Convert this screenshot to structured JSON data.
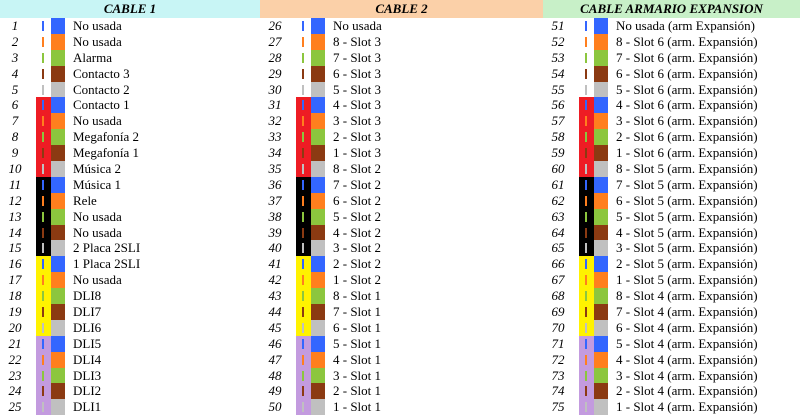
{
  "palette": {
    "white": "#ffffff",
    "red": "#ee1c24",
    "black": "#000000",
    "yellow": "#fff200",
    "violet": "#c39bdf",
    "blue": "#3366ff",
    "orange": "#ff7f1e",
    "green": "#8cc63e",
    "brown": "#8b3a12",
    "grey": "#c0c0c0"
  },
  "pair_order": [
    "blue",
    "orange",
    "green",
    "brown",
    "grey"
  ],
  "group_order": [
    "white",
    "red",
    "black",
    "yellow",
    "violet"
  ],
  "tables": [
    {
      "title": "CABLE 1",
      "header_color": "#c8f5f5",
      "rows": [
        {
          "num": "1",
          "label": "No usada"
        },
        {
          "num": "2",
          "label": "No usada"
        },
        {
          "num": "3",
          "label": "Alarma"
        },
        {
          "num": "4",
          "label": "Contacto 3"
        },
        {
          "num": "5",
          "label": "Contacto 2"
        },
        {
          "num": "6",
          "label": "Contacto 1"
        },
        {
          "num": "7",
          "label": "No usada"
        },
        {
          "num": "8",
          "label": "Megafonía 2"
        },
        {
          "num": "9",
          "label": "Megafonía 1"
        },
        {
          "num": "10",
          "label": "Música 2"
        },
        {
          "num": "11",
          "label": "Música 1"
        },
        {
          "num": "12",
          "label": "Rele"
        },
        {
          "num": "13",
          "label": "No usada"
        },
        {
          "num": "14",
          "label": "No usada"
        },
        {
          "num": "15",
          "label": "2 Placa 2SLI"
        },
        {
          "num": "16",
          "label": "1 Placa 2SLI"
        },
        {
          "num": "17",
          "label": "No usada"
        },
        {
          "num": "18",
          "label": "DLI8"
        },
        {
          "num": "19",
          "label": "DLI7"
        },
        {
          "num": "20",
          "label": "DLI6"
        },
        {
          "num": "21",
          "label": "DLI5"
        },
        {
          "num": "22",
          "label": "DLI4"
        },
        {
          "num": "23",
          "label": "DLI3"
        },
        {
          "num": "24",
          "label": "DLI2"
        },
        {
          "num": "25",
          "label": "DLI1"
        }
      ]
    },
    {
      "title": "CABLE 2",
      "header_color": "#fbd0a8",
      "rows": [
        {
          "num": "26",
          "label": "No usada"
        },
        {
          "num": "27",
          "label": "8 - Slot 3"
        },
        {
          "num": "28",
          "label": "7 - Slot 3"
        },
        {
          "num": "29",
          "label": "6 - Slot 3"
        },
        {
          "num": "30",
          "label": "5 - Slot 3"
        },
        {
          "num": "31",
          "label": "4 - Slot 3"
        },
        {
          "num": "32",
          "label": "3 - Slot 3"
        },
        {
          "num": "33",
          "label": "2 - Slot 3"
        },
        {
          "num": "34",
          "label": "1 - Slot 3"
        },
        {
          "num": "35",
          "label": "8 - Slot 2"
        },
        {
          "num": "36",
          "label": "7 - Slot 2"
        },
        {
          "num": "37",
          "label": "6 - Slot 2"
        },
        {
          "num": "38",
          "label": "5 - Slot 2"
        },
        {
          "num": "39",
          "label": "4 - Slot 2"
        },
        {
          "num": "40",
          "label": "3 - Slot 2"
        },
        {
          "num": "41",
          "label": "2 - Slot 2"
        },
        {
          "num": "42",
          "label": "1 - Slot 2"
        },
        {
          "num": "43",
          "label": "8 - Slot 1"
        },
        {
          "num": "44",
          "label": "7 - Slot 1"
        },
        {
          "num": "45",
          "label": "6 - Slot 1"
        },
        {
          "num": "46",
          "label": "5 - Slot 1"
        },
        {
          "num": "47",
          "label": "4 - Slot 1"
        },
        {
          "num": "48",
          "label": "3 - Slot 1"
        },
        {
          "num": "49",
          "label": "2 - Slot 1"
        },
        {
          "num": "50",
          "label": "1 - Slot 1"
        }
      ]
    },
    {
      "title": "CABLE ARMARIO EXPANSION",
      "header_color": "#c8f0c8",
      "rows": [
        {
          "num": "51",
          "label": "No usada (arm Expansión)"
        },
        {
          "num": "52",
          "label": "8 - Slot 6 (arm. Expansión)"
        },
        {
          "num": "53",
          "label": "7 - Slot 6 (arm. Expansión)"
        },
        {
          "num": "54",
          "label": "6 - Slot 6 (arm. Expansión)"
        },
        {
          "num": "55",
          "label": "5 - Slot 6 (arm. Expansión)"
        },
        {
          "num": "56",
          "label": "4 - Slot 6 (arm. Expansión)"
        },
        {
          "num": "57",
          "label": "3 - Slot 6 (arm. Expansión)"
        },
        {
          "num": "58",
          "label": "2 - Slot 6 (arm. Expansión)"
        },
        {
          "num": "59",
          "label": "1 - Slot 6 (arm. Expansión)"
        },
        {
          "num": "60",
          "label": "8 - Slot 5 (arm. Expansión)"
        },
        {
          "num": "61",
          "label": "7 - Slot 5 (arm. Expansión)"
        },
        {
          "num": "62",
          "label": "6 - Slot 5 (arm. Expansión)"
        },
        {
          "num": "63",
          "label": "5 - Slot 5 (arm. Expansión)"
        },
        {
          "num": "64",
          "label": "4 - Slot 5 (arm. Expansión)"
        },
        {
          "num": "65",
          "label": "3 - Slot 5 (arm. Expansión)"
        },
        {
          "num": "66",
          "label": "2 - Slot 5 (arm. Expansión)"
        },
        {
          "num": "67",
          "label": "1 - Slot 5 (arm. Expansión)"
        },
        {
          "num": "68",
          "label": "8 - Slot 4 (arm. Expansión)"
        },
        {
          "num": "69",
          "label": "7 - Slot 4 (arm. Expansión)"
        },
        {
          "num": "70",
          "label": "6 - Slot 4 (arm. Expansión)"
        },
        {
          "num": "71",
          "label": "5 - Slot 4 (arm. Expansión)"
        },
        {
          "num": "72",
          "label": "4 - Slot 4 (arm. Expansión)"
        },
        {
          "num": "73",
          "label": "3 - Slot 4 (arm. Expansión)"
        },
        {
          "num": "74",
          "label": "2 - Slot 4 (arm. Expansión)"
        },
        {
          "num": "75",
          "label": "1 - Slot 4 (arm. Expansión)"
        }
      ]
    }
  ]
}
